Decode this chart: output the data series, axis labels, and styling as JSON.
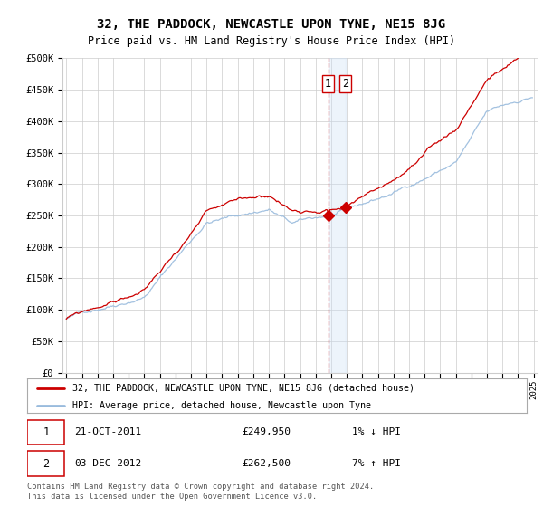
{
  "title": "32, THE PADDOCK, NEWCASTLE UPON TYNE, NE15 8JG",
  "subtitle": "Price paid vs. HM Land Registry's House Price Index (HPI)",
  "line1_label": "32, THE PADDOCK, NEWCASTLE UPON TYNE, NE15 8JG (detached house)",
  "line2_label": "HPI: Average price, detached house, Newcastle upon Tyne",
  "line1_color": "#cc0000",
  "line2_color": "#99bbdd",
  "vspan_color": "#ddeeff",
  "vline_color": "#cc0000",
  "sale1_date_num": 2011.81,
  "sale1_price": 249950,
  "sale2_date_num": 2012.92,
  "sale2_price": 262500,
  "ylim_min": 0,
  "ylim_max": 500000,
  "yticks": [
    0,
    50000,
    100000,
    150000,
    200000,
    250000,
    300000,
    350000,
    400000,
    450000,
    500000
  ],
  "ytick_labels": [
    "£0",
    "£50K",
    "£100K",
    "£150K",
    "£200K",
    "£250K",
    "£300K",
    "£350K",
    "£400K",
    "£450K",
    "£500K"
  ],
  "xmin": 1994.75,
  "xmax": 2025.25,
  "background_color": "#ffffff",
  "grid_color": "#cccccc",
  "footer": "Contains HM Land Registry data © Crown copyright and database right 2024.\nThis data is licensed under the Open Government Licence v3.0."
}
